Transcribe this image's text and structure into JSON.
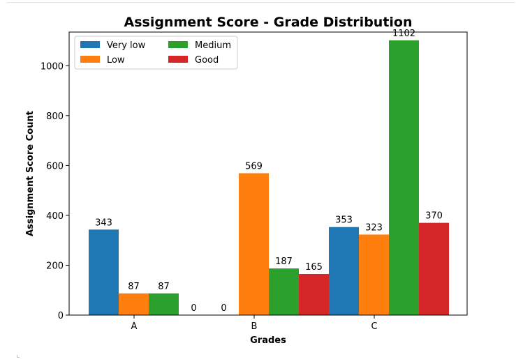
{
  "chart_data": {
    "type": "bar",
    "title": "Assignment Score - Grade Distribution",
    "xlabel": "Grades",
    "ylabel": "Assignment Score Count",
    "categories": [
      "A",
      "B",
      "C"
    ],
    "series": [
      {
        "name": "Very low",
        "color": "#1f77b4",
        "values": [
          343,
          0,
          353
        ]
      },
      {
        "name": "Low",
        "color": "#ff7f0e",
        "values": [
          87,
          569,
          323
        ]
      },
      {
        "name": "Medium",
        "color": "#2ca02c",
        "values": [
          87,
          187,
          1102
        ]
      },
      {
        "name": "Good",
        "color": "#d62728",
        "values": [
          0,
          165,
          370
        ]
      }
    ],
    "ylim": [
      0,
      1135
    ],
    "yticks": [
      0,
      200,
      400,
      600,
      800,
      1000
    ],
    "grid": false,
    "legend": {
      "placement": "top-left",
      "columns": 2
    }
  }
}
